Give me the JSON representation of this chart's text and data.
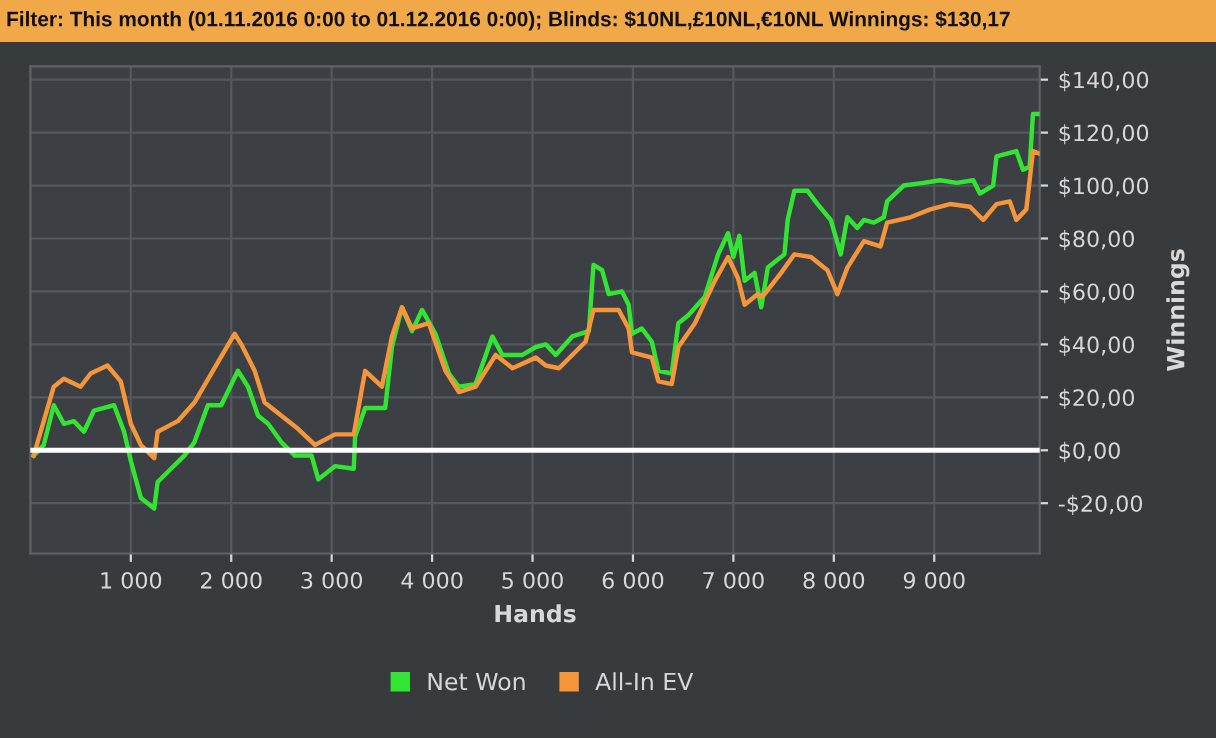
{
  "chart_data": {
    "type": "line",
    "title": "Filter: This month (01.11.2016 0:00 to 01.12.2016 0:00); Blinds: $10NL,£10NL,€10NL Winnings: $130,17",
    "xlabel": "Hands",
    "ylabel": "Winnings",
    "series": [
      {
        "name": "Net Won",
        "color": "#33e533",
        "x": [
          33,
          133,
          233,
          333,
          433,
          533,
          633,
          733,
          833,
          933,
          1000,
          1100,
          1233,
          1267,
          1400,
          1533,
          1633,
          1767,
          1900,
          2067,
          2167,
          2267,
          2367,
          2500,
          2633,
          2800,
          2867,
          3033,
          3220,
          3233,
          3333,
          3533,
          3600,
          3700,
          3800,
          3900,
          4033,
          4167,
          4267,
          4433,
          4600,
          4700,
          4900,
          5033,
          5132,
          5231,
          5396,
          5561,
          5607,
          5693,
          5759,
          5891,
          5957,
          5990,
          6089,
          6188,
          6254,
          6386,
          6452,
          6551,
          6716,
          6848,
          6947,
          7000,
          7059,
          7112,
          7211,
          7277,
          7343,
          7508,
          7541,
          7607,
          7739,
          7838,
          7970,
          8069,
          8135,
          8234,
          8300,
          8399,
          8498,
          8531,
          8696,
          8894,
          9059,
          9224,
          9389,
          9455,
          9587,
          9620,
          9818,
          9884,
          9950,
          9983,
          10049
        ],
        "values": [
          -2,
          2,
          17,
          10,
          11,
          7,
          15,
          16,
          17,
          7,
          -4,
          -18,
          -22,
          -12,
          -7,
          -2,
          3,
          17,
          17,
          30,
          24,
          13,
          10,
          3,
          -2,
          -2,
          -11,
          -6,
          -7,
          5,
          16,
          16,
          39,
          54,
          45,
          53,
          44,
          29,
          24,
          25,
          43,
          36,
          36,
          39,
          40,
          36,
          43,
          45,
          70,
          68,
          59,
          60,
          55,
          44,
          46,
          41,
          30,
          29,
          48,
          51,
          58,
          74,
          82,
          73,
          81,
          64,
          67,
          54,
          69,
          74,
          87,
          98,
          98,
          93,
          87,
          74,
          88,
          84,
          87,
          86,
          88,
          94,
          100,
          101,
          102,
          101,
          102,
          97,
          100,
          111,
          113,
          106,
          107,
          127,
          127
        ]
      },
      {
        "name": "All-In EV",
        "color": "#f5963a",
        "x": [
          33,
          233,
          333,
          500,
          600,
          767,
          900,
          1000,
          1100,
          1233,
          1267,
          1467,
          1633,
          1833,
          2033,
          2100,
          2233,
          2333,
          2500,
          2667,
          2833,
          3033,
          3220,
          3333,
          3500,
          3600,
          3700,
          3800,
          3967,
          4133,
          4267,
          4433,
          4633,
          4800,
          5033,
          5132,
          5264,
          5528,
          5607,
          5858,
          5957,
          5990,
          6188,
          6254,
          6386,
          6452,
          6617,
          6815,
          6947,
          7046,
          7112,
          7244,
          7277,
          7310,
          7475,
          7607,
          7772,
          7937,
          8036,
          8135,
          8300,
          8465,
          8531,
          8762,
          8960,
          9158,
          9356,
          9488,
          9620,
          9752,
          9818,
          9917,
          9983,
          10049
        ],
        "values": [
          -2,
          24,
          27,
          24,
          29,
          32,
          26,
          10,
          2,
          -3,
          7,
          11,
          18,
          31,
          44,
          40,
          30,
          18,
          13,
          8,
          2,
          6,
          6,
          30,
          24,
          43,
          54,
          46,
          48,
          30,
          22,
          24,
          36,
          31,
          35,
          32,
          31,
          41,
          53,
          53,
          46,
          37,
          35,
          26,
          25,
          39,
          48,
          64,
          73,
          65,
          55,
          59,
          58,
          59,
          67,
          74,
          73,
          68,
          59,
          69,
          79,
          77,
          86,
          88,
          91,
          93,
          92,
          87,
          93,
          94,
          87,
          91,
          113,
          112
        ]
      }
    ],
    "xlim": [
      0,
      10050
    ],
    "ylim": [
      -39,
      145
    ],
    "xticks": [
      {
        "value": 1000,
        "label": "1 000"
      },
      {
        "value": 2000,
        "label": "2 000"
      },
      {
        "value": 3000,
        "label": "3 000"
      },
      {
        "value": 4000,
        "label": "4 000"
      },
      {
        "value": 5000,
        "label": "5 000"
      },
      {
        "value": 6000,
        "label": "6 000"
      },
      {
        "value": 7000,
        "label": "7 000"
      },
      {
        "value": 8000,
        "label": "8 000"
      },
      {
        "value": 9000,
        "label": "9 000"
      }
    ],
    "yticks": [
      {
        "value": -20,
        "label": "-$20,00"
      },
      {
        "value": 0,
        "label": "$0,00"
      },
      {
        "value": 20,
        "label": "$20,00"
      },
      {
        "value": 40,
        "label": "$40,00"
      },
      {
        "value": 60,
        "label": "$60,00"
      },
      {
        "value": 80,
        "label": "$80,00"
      },
      {
        "value": 100,
        "label": "$100,00"
      },
      {
        "value": 120,
        "label": "$120,00"
      },
      {
        "value": 140,
        "label": "$140,00"
      }
    ],
    "ref_lines": [
      {
        "axis": "y",
        "value": 0,
        "color": "#ffffff"
      }
    ],
    "grid": true,
    "legend": "bottom",
    "marker": "none",
    "line_style": "solid"
  }
}
